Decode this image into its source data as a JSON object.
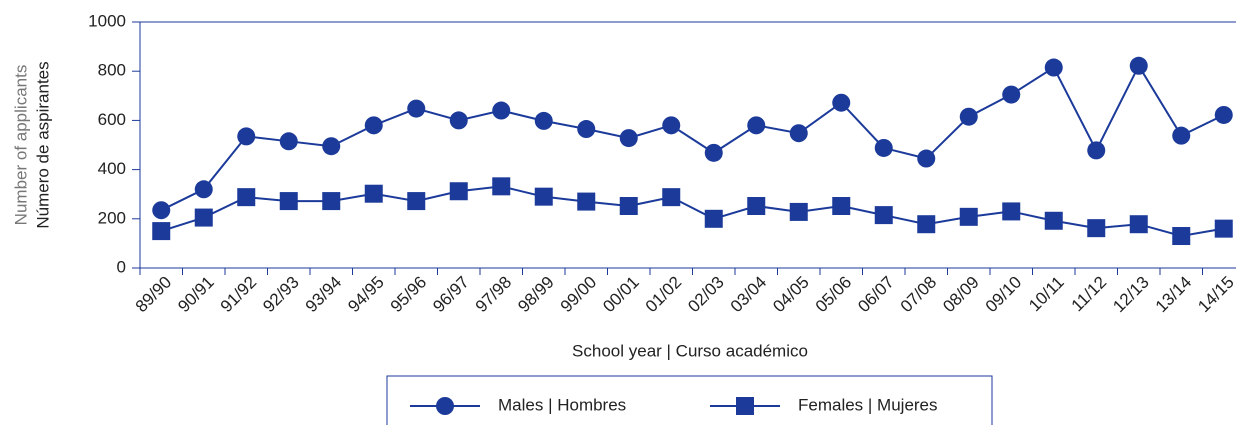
{
  "chart_data": {
    "type": "line",
    "y_label": [
      "Number of applicants",
      "Número de aspirantes"
    ],
    "x_label": "School year | Curso académico",
    "categories": [
      "89/90",
      "90/91",
      "91/92",
      "92/93",
      "93/94",
      "94/95",
      "95/96",
      "96/97",
      "97/98",
      "98/99",
      "99/00",
      "00/01",
      "01/02",
      "02/03",
      "03/04",
      "04/05",
      "05/06",
      "06/07",
      "07/08",
      "08/09",
      "09/10",
      "10/11",
      "11/12",
      "12/13",
      "13/14",
      "14/15"
    ],
    "series": [
      {
        "name": "Males | Hombres",
        "color": "#1b3a9a",
        "marker": "circle",
        "values": [
          235,
          320,
          535,
          515,
          495,
          580,
          648,
          600,
          640,
          598,
          565,
          528,
          580,
          468,
          580,
          548,
          672,
          488,
          445,
          615,
          705,
          815,
          478,
          822,
          538,
          622
        ]
      },
      {
        "name": "Females | Mujeres",
        "color": "#1b3a9a",
        "marker": "square",
        "values": [
          150,
          205,
          288,
          272,
          272,
          302,
          272,
          312,
          332,
          290,
          270,
          252,
          288,
          200,
          252,
          228,
          252,
          215,
          178,
          208,
          230,
          192,
          162,
          178,
          130,
          160
        ]
      }
    ],
    "ylim": [
      0,
      1000
    ],
    "yticks": [
      0,
      200,
      400,
      600,
      800,
      1000
    ]
  }
}
